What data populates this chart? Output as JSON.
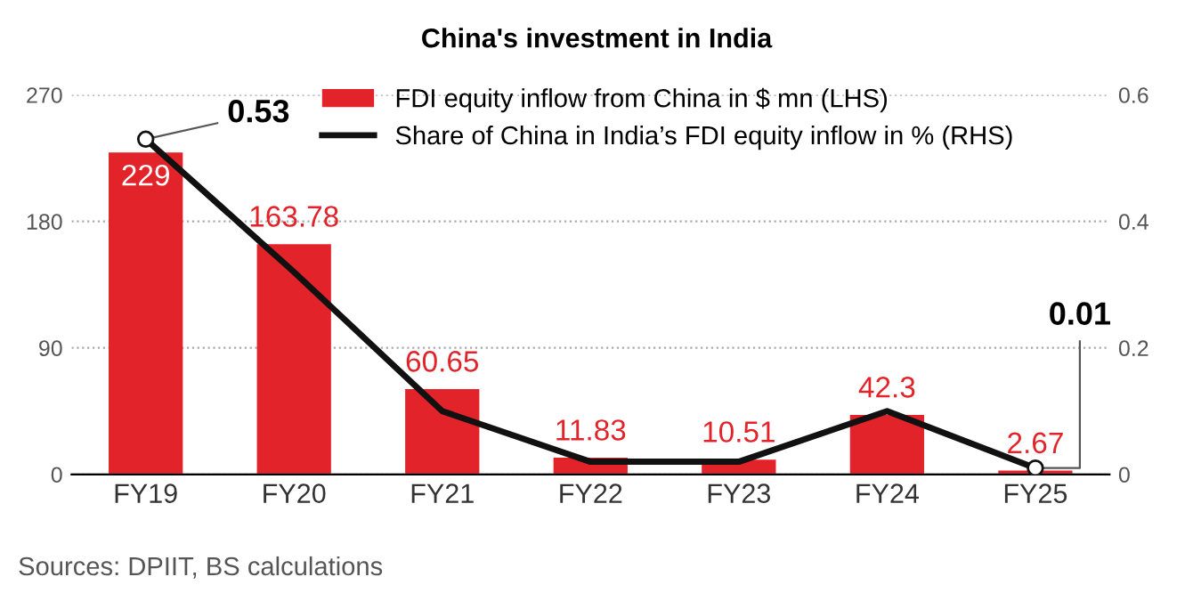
{
  "chart_data": {
    "type": "bar",
    "title": "China's investment in India",
    "categories": [
      "FY19",
      "FY20",
      "FY21",
      "FY22",
      "FY23",
      "FY24",
      "FY25"
    ],
    "series": [
      {
        "name": "FDI equity inflow from China in $ mn (LHS)",
        "color": "#e3232a",
        "values": [
          229,
          163.78,
          60.65,
          11.83,
          10.51,
          42.3,
          2.67
        ]
      },
      {
        "name": "Share of China in India’s FDI equity inflow in % (RHS)",
        "type": "line",
        "axis": "y2",
        "color": "#111111",
        "values": [
          0.53,
          0.32,
          0.1,
          0.02,
          0.02,
          0.1,
          0.01
        ],
        "value_labels": [
          "0.53",
          null,
          null,
          null,
          null,
          null,
          "0.01"
        ]
      }
    ],
    "data_labels": true,
    "ylim": [
      0,
      270
    ],
    "yticks": [
      0,
      90,
      180,
      270
    ],
    "y2lim": [
      0,
      0.6
    ],
    "y2ticks": [
      0,
      0.2,
      0.4,
      0.6
    ],
    "grid": "y",
    "legend": "top right",
    "annotations": [
      "Sources: DPIIT, BS calculations"
    ]
  }
}
